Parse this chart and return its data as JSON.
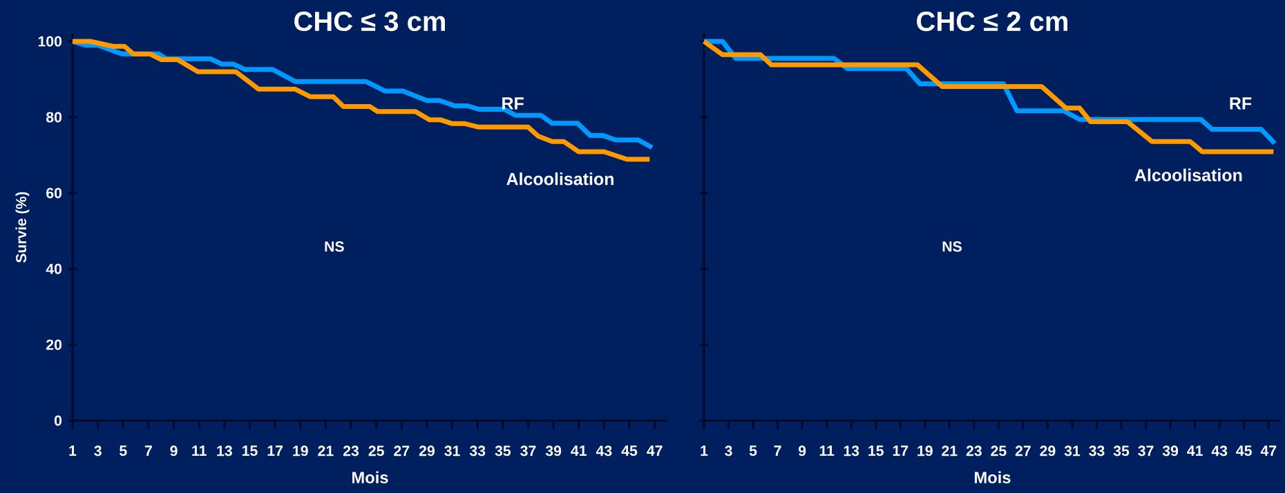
{
  "chart_data": [
    {
      "type": "line",
      "title": "CHC ≤ 3 cm",
      "xlabel": "Mois",
      "ylabel": "Survie (%)",
      "xlim": [
        1,
        48
      ],
      "ylim": [
        0,
        102
      ],
      "xticks": [
        1,
        3,
        5,
        7,
        9,
        11,
        13,
        15,
        17,
        19,
        21,
        23,
        25,
        27,
        29,
        31,
        33,
        35,
        37,
        39,
        41,
        43,
        45,
        47
      ],
      "yticks": [
        0,
        20,
        40,
        60,
        80,
        100
      ],
      "annotations": [
        "NS"
      ],
      "series": [
        {
          "name": "RF",
          "color": "#0099ff",
          "x": [
            1,
            2,
            3,
            4.9,
            7.8,
            8.4,
            11.9,
            12.8,
            13.7,
            14.6,
            16.8,
            18.6,
            24.2,
            25.7,
            27.1,
            29,
            30,
            31.2,
            32.2,
            33.1,
            35.1,
            36,
            38,
            38.9,
            40.9,
            41.9,
            42.9,
            43.9,
            45.7,
            46.8
          ],
          "values": [
            100,
            99,
            99,
            96.7,
            96.7,
            95.4,
            95.4,
            94,
            94,
            92.6,
            92.6,
            89.4,
            89.4,
            86.9,
            86.9,
            84.4,
            84.4,
            83,
            83,
            82.1,
            82.1,
            80.5,
            80.5,
            78.4,
            78.4,
            75.2,
            75.2,
            74,
            74,
            72
          ]
        },
        {
          "name": "Alcoolisation",
          "color": "#ff9900",
          "x": [
            1,
            2.4,
            4.2,
            5.1,
            5.8,
            7.1,
            8,
            9.3,
            10.9,
            13.9,
            15.7,
            18.6,
            19.8,
            21.6,
            22.4,
            24.5,
            25.1,
            28.1,
            29.2,
            30.1,
            31,
            32,
            33.1,
            37,
            37.8,
            38.9,
            39.8,
            41,
            43,
            44.8,
            46.6
          ],
          "values": [
            100,
            100,
            98.7,
            98.7,
            96.7,
            96.7,
            95.2,
            95.2,
            92,
            92,
            87.4,
            87.4,
            85.4,
            85.4,
            82.8,
            82.8,
            81.5,
            81.5,
            79.3,
            79.3,
            78.3,
            78.3,
            77.4,
            77.4,
            75,
            73.6,
            73.6,
            70.9,
            70.9,
            68.9,
            68.9
          ]
        }
      ]
    },
    {
      "type": "line",
      "title": "CHC ≤ 2 cm",
      "xlabel": "Mois",
      "xlim": [
        1,
        48
      ],
      "ylim": [
        0,
        102
      ],
      "xticks": [
        1,
        3,
        5,
        7,
        9,
        11,
        13,
        15,
        17,
        19,
        21,
        23,
        25,
        27,
        29,
        31,
        33,
        35,
        37,
        39,
        41,
        43,
        45,
        47
      ],
      "yticks": [
        0,
        20,
        40,
        60,
        80,
        100
      ],
      "tick_labels": "x",
      "annotations": [
        "NS"
      ],
      "series": [
        {
          "name": "RF",
          "color": "#0099ff",
          "x": [
            1,
            2.5,
            3.6,
            11.6,
            12.7,
            17.5,
            18.6,
            25.4,
            26.5,
            30.3,
            31.6,
            41.5,
            42.4,
            46.4,
            47.5
          ],
          "values": [
            100,
            100,
            95.5,
            95.5,
            92.8,
            92.8,
            88.8,
            88.8,
            81.7,
            81.7,
            79.4,
            79.4,
            76.8,
            76.8,
            73.1
          ]
        },
        {
          "name": "Alcoolisation",
          "color": "#ff9900",
          "x": [
            1,
            2.5,
            5.6,
            6.5,
            18.4,
            20.4,
            28.5,
            30.5,
            31.6,
            32.5,
            35.5,
            37.5,
            40.6,
            41.6,
            47.4
          ],
          "values": [
            100,
            96.5,
            96.5,
            93.8,
            93.8,
            88.1,
            88.1,
            82.4,
            82.4,
            78.8,
            78.8,
            73.6,
            73.6,
            70.9,
            70.9
          ]
        }
      ]
    }
  ]
}
